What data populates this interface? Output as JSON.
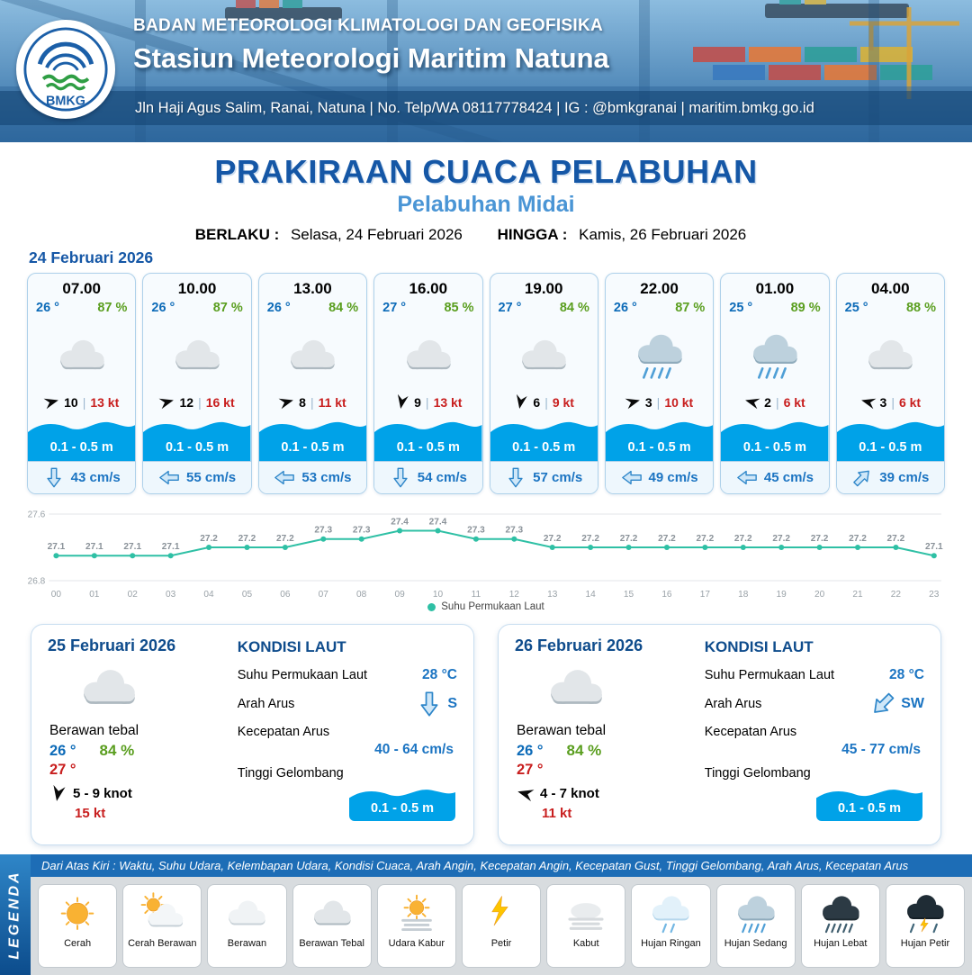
{
  "header": {
    "org": "BADAN METEOROLOGI KLIMATOLOGI DAN GEOFISIKA",
    "station": "Stasiun Meteorologi Maritim Natuna",
    "address": "Jln Haji Agus Salim, Ranai, Natuna  | No. Telp/WA 08117778424 | IG : @bmkgranai | maritim.bmkg.go.id",
    "logo_text": "BMKG"
  },
  "title": {
    "main": "PRAKIRAAN CUACA PELABUHAN",
    "port": "Pelabuhan Midai",
    "berlaku_label": "BERLAKU :",
    "berlaku_value": "Selasa, 24 Februari 2026",
    "hingga_label": "HINGGA :",
    "hingga_value": "Kamis, 26 Februari 2026"
  },
  "day1": {
    "date": "24 Februari 2026",
    "cards": [
      {
        "time": "07.00",
        "temp": "26 °",
        "humidity": "87 %",
        "icon": "berawan-tebal",
        "wind_deg": -15,
        "wind": "10",
        "gust": "13 kt",
        "wave": "0.1 - 0.5 m",
        "current": "43 cm/s",
        "current_deg": 90
      },
      {
        "time": "10.00",
        "temp": "26 °",
        "humidity": "87 %",
        "icon": "berawan-tebal",
        "wind_deg": -15,
        "wind": "12",
        "gust": "16 kt",
        "wave": "0.1 - 0.5 m",
        "current": "55 cm/s",
        "current_deg": 180
      },
      {
        "time": "13.00",
        "temp": "26 °",
        "humidity": "84 %",
        "icon": "berawan-tebal",
        "wind_deg": -15,
        "wind": "8",
        "gust": "11 kt",
        "wave": "0.1 - 0.5 m",
        "current": "53 cm/s",
        "current_deg": 180
      },
      {
        "time": "16.00",
        "temp": "27 °",
        "humidity": "85 %",
        "icon": "berawan-tebal",
        "wind_deg": 100,
        "wind": "9",
        "gust": "13 kt",
        "wave": "0.1 - 0.5 m",
        "current": "54 cm/s",
        "current_deg": 90
      },
      {
        "time": "19.00",
        "temp": "27 °",
        "humidity": "84 %",
        "icon": "berawan-tebal",
        "wind_deg": 100,
        "wind": "6",
        "gust": "9 kt",
        "wave": "0.1 - 0.5 m",
        "current": "57 cm/s",
        "current_deg": 90
      },
      {
        "time": "22.00",
        "temp": "26 °",
        "humidity": "87 %",
        "icon": "hujan-sedang",
        "wind_deg": -15,
        "wind": "3",
        "gust": "10 kt",
        "wave": "0.1 - 0.5 m",
        "current": "49 cm/s",
        "current_deg": 180
      },
      {
        "time": "01.00",
        "temp": "25 °",
        "humidity": "89 %",
        "icon": "hujan-sedang",
        "wind_deg": 195,
        "wind": "2",
        "gust": "6 kt",
        "wave": "0.1 - 0.5 m",
        "current": "45 cm/s",
        "current_deg": 180
      },
      {
        "time": "04.00",
        "temp": "25 °",
        "humidity": "88 %",
        "icon": "berawan-tebal",
        "wind_deg": 195,
        "wind": "3",
        "gust": "6 kt",
        "wave": "0.1 - 0.5 m",
        "current": "39 cm/s",
        "current_deg": -45
      }
    ]
  },
  "chart_data": {
    "type": "line",
    "series_name": "Suhu Permukaan Laut",
    "x": [
      "00",
      "01",
      "02",
      "03",
      "04",
      "05",
      "06",
      "07",
      "08",
      "09",
      "10",
      "11",
      "12",
      "13",
      "14",
      "15",
      "16",
      "17",
      "18",
      "19",
      "20",
      "21",
      "22",
      "23"
    ],
    "values": [
      27.1,
      27.1,
      27.1,
      27.1,
      27.2,
      27.2,
      27.2,
      27.3,
      27.3,
      27.4,
      27.4,
      27.3,
      27.3,
      27.2,
      27.2,
      27.2,
      27.2,
      27.2,
      27.2,
      27.2,
      27.2,
      27.2,
      27.2,
      27.1
    ],
    "ylim": [
      26.8,
      27.6
    ],
    "yticks": [
      26.8,
      27.6
    ],
    "line_color": "#2fc0a5",
    "grid": true,
    "legend_position": "bottom",
    "show_point_labels": true
  },
  "daily": [
    {
      "date": "25 Februari 2026",
      "condition": "Berawan tebal",
      "icon": "berawan-tebal",
      "temp_day": "26 °",
      "humidity": "84 %",
      "temp_night": "27 °",
      "wind_deg": 100,
      "wind": "5 - 9 knot",
      "gust": "15 kt",
      "sea_title": "KONDISI LAUT",
      "sst_label": "Suhu Permukaan Laut",
      "sst": "28 °C",
      "arus_label": "Arah Arus",
      "arus_dir": "S",
      "arus_deg": 90,
      "arus_speed_label": "Kecepatan Arus",
      "arus_speed": "40 - 64 cm/s",
      "wave_label": "Tinggi Gelombang",
      "wave": "0.1 - 0.5 m"
    },
    {
      "date": "26 Februari 2026",
      "condition": "Berawan tebal",
      "icon": "berawan-tebal",
      "temp_day": "26 °",
      "humidity": "84 %",
      "temp_night": "27 °",
      "wind_deg": 195,
      "wind": "4 - 7 knot",
      "gust": "11 kt",
      "sea_title": "KONDISI LAUT",
      "sst_label": "Suhu Permukaan Laut",
      "sst": "28 °C",
      "arus_label": "Arah Arus",
      "arus_dir": "SW",
      "arus_deg": 135,
      "arus_speed_label": "Kecepatan Arus",
      "arus_speed": "45 - 77 cm/s",
      "wave_label": "Tinggi Gelombang",
      "wave": "0.1 - 0.5 m"
    }
  ],
  "legend": {
    "title": "LEGENDA",
    "note": "Dari Atas Kiri : Waktu, Suhu Udara, Kelembapan Udara, Kondisi Cuaca, Arah Angin, Kecepatan Angin, Kecepatan Gust, Tinggi Gelombang, Arah Arus, Kecepatan Arus",
    "items": [
      {
        "label": "Cerah",
        "icon": "cerah"
      },
      {
        "label": "Cerah Berawan",
        "icon": "cerah-berawan"
      },
      {
        "label": "Berawan",
        "icon": "berawan"
      },
      {
        "label": "Berawan Tebal",
        "icon": "berawan-tebal"
      },
      {
        "label": "Udara Kabur",
        "icon": "udara-kabur"
      },
      {
        "label": "Petir",
        "icon": "petir"
      },
      {
        "label": "Kabut",
        "icon": "kabut"
      },
      {
        "label": "Hujan Ringan",
        "icon": "hujan-ringan"
      },
      {
        "label": "Hujan Sedang",
        "icon": "hujan-sedang"
      },
      {
        "label": "Hujan Lebat",
        "icon": "hujan-lebat"
      },
      {
        "label": "Hujan Petir",
        "icon": "hujan-petir"
      }
    ]
  }
}
